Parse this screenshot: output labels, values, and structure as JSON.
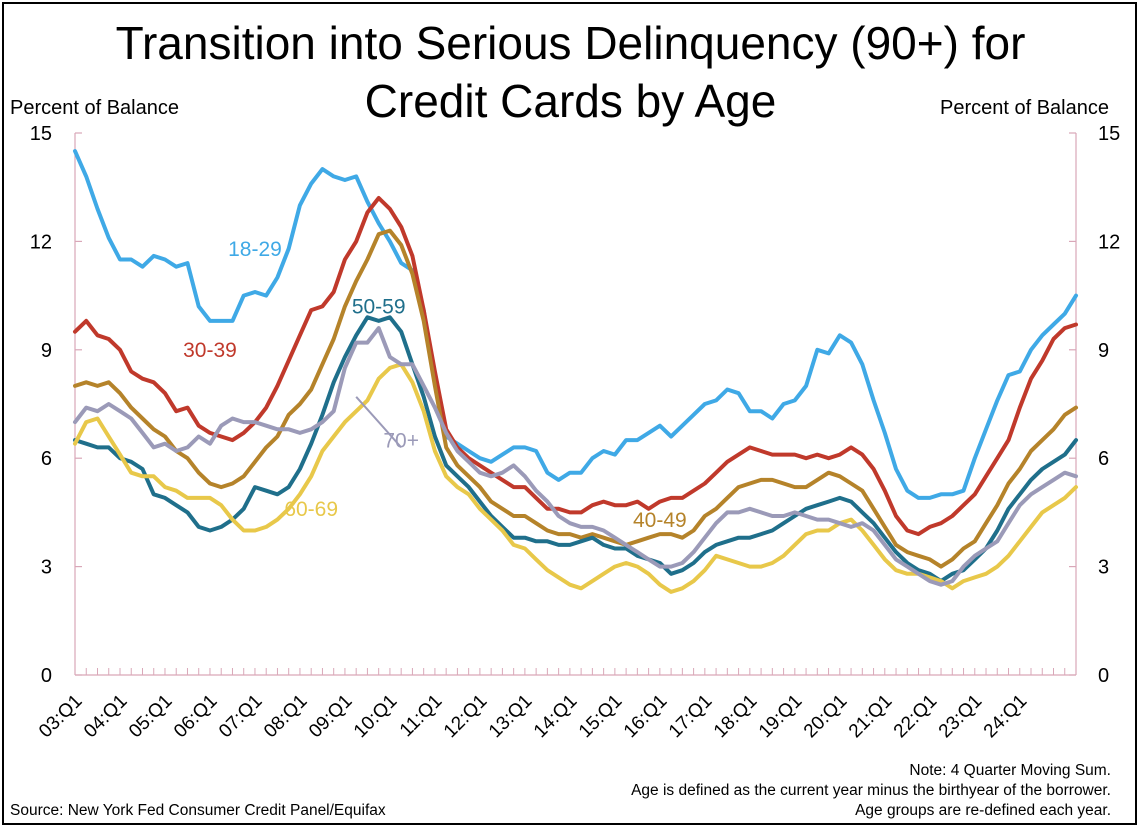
{
  "chart_data": {
    "type": "line",
    "title": "Transition into Serious Delinquency (90+) for Credit Cards by Age",
    "title_lines": [
      "Transition into Serious Delinquency (90+) for",
      "Credit Cards by Age"
    ],
    "ylabel_left": "Percent of Balance",
    "ylabel_right": "Percent of Balance",
    "ylim": [
      0,
      15
    ],
    "yticks": [
      0,
      3,
      6,
      9,
      12,
      15
    ],
    "x_start": "03:Q1",
    "x_ticks": [
      "03:Q1",
      "04:Q1",
      "05:Q1",
      "06:Q1",
      "07:Q1",
      "08:Q1",
      "09:Q1",
      "10:Q1",
      "11:Q1",
      "12:Q1",
      "13:Q1",
      "14:Q1",
      "15:Q1",
      "16:Q1",
      "17:Q1",
      "18:Q1",
      "19:Q1",
      "20:Q1",
      "21:Q1",
      "22:Q1",
      "23:Q1",
      "24:Q1"
    ],
    "x_last": "24:Q3",
    "grid": false,
    "series": [
      {
        "name": "18-29",
        "color": "#3fa9e6",
        "label_x": "07:Q1",
        "label_y": 11.6,
        "values": [
          14.5,
          13.8,
          12.9,
          12.1,
          11.5,
          11.5,
          11.3,
          11.6,
          11.5,
          11.3,
          11.4,
          10.2,
          9.8,
          9.8,
          9.8,
          10.5,
          10.6,
          10.5,
          11.0,
          11.8,
          13.0,
          13.6,
          14.0,
          13.8,
          13.7,
          13.8,
          13.1,
          12.5,
          12.0,
          11.4,
          11.2,
          10.1,
          8.1,
          6.6,
          6.4,
          6.2,
          6.0,
          5.9,
          6.1,
          6.3,
          6.3,
          6.2,
          5.6,
          5.4,
          5.6,
          5.6,
          6.0,
          6.2,
          6.1,
          6.5,
          6.5,
          6.7,
          6.9,
          6.6,
          6.9,
          7.2,
          7.5,
          7.6,
          7.9,
          7.8,
          7.3,
          7.3,
          7.1,
          7.5,
          7.6,
          8.0,
          9.0,
          8.9,
          9.4,
          9.2,
          8.6,
          7.6,
          6.7,
          5.7,
          5.1,
          4.9,
          4.9,
          5.0,
          5.0,
          5.1,
          6.0,
          6.8,
          7.6,
          8.3,
          8.4,
          9.0,
          9.4,
          9.7,
          10.0,
          10.5
        ]
      },
      {
        "name": "30-39",
        "color": "#c0392b",
        "label_x": "06:Q1",
        "label_y": 8.8,
        "values": [
          9.5,
          9.8,
          9.4,
          9.3,
          9.0,
          8.4,
          8.2,
          8.1,
          7.8,
          7.3,
          7.4,
          6.9,
          6.7,
          6.6,
          6.5,
          6.7,
          7.0,
          7.4,
          8.0,
          8.7,
          9.4,
          10.1,
          10.2,
          10.6,
          11.5,
          12.0,
          12.8,
          13.2,
          12.9,
          12.4,
          11.6,
          10.1,
          8.4,
          6.8,
          6.3,
          6.0,
          5.8,
          5.6,
          5.4,
          5.2,
          5.2,
          4.9,
          4.6,
          4.6,
          4.5,
          4.5,
          4.7,
          4.8,
          4.7,
          4.7,
          4.8,
          4.6,
          4.8,
          4.9,
          4.9,
          5.1,
          5.3,
          5.6,
          5.9,
          6.1,
          6.3,
          6.2,
          6.1,
          6.1,
          6.1,
          6.0,
          6.1,
          6.0,
          6.1,
          6.3,
          6.1,
          5.7,
          5.1,
          4.4,
          4.0,
          3.9,
          4.1,
          4.2,
          4.4,
          4.7,
          5.0,
          5.5,
          6.0,
          6.5,
          7.4,
          8.2,
          8.7,
          9.3,
          9.6,
          9.7
        ]
      },
      {
        "name": "40-49",
        "color": "#b5832a",
        "label_x": "16:Q1",
        "label_y": 4.1,
        "values": [
          8.0,
          8.1,
          8.0,
          8.1,
          7.8,
          7.4,
          7.1,
          6.8,
          6.6,
          6.2,
          6.0,
          5.6,
          5.3,
          5.2,
          5.3,
          5.5,
          5.9,
          6.3,
          6.6,
          7.2,
          7.5,
          7.9,
          8.6,
          9.3,
          10.2,
          10.9,
          11.5,
          12.2,
          12.3,
          11.9,
          11.1,
          9.8,
          8.0,
          6.3,
          5.8,
          5.5,
          5.2,
          4.8,
          4.6,
          4.4,
          4.4,
          4.2,
          4.0,
          3.9,
          3.9,
          3.8,
          3.9,
          3.8,
          3.7,
          3.6,
          3.7,
          3.8,
          3.9,
          3.9,
          3.8,
          4.0,
          4.4,
          4.6,
          4.9,
          5.2,
          5.3,
          5.4,
          5.4,
          5.3,
          5.2,
          5.2,
          5.4,
          5.6,
          5.5,
          5.3,
          5.1,
          4.6,
          4.1,
          3.6,
          3.4,
          3.3,
          3.2,
          3.0,
          3.2,
          3.5,
          3.7,
          4.2,
          4.7,
          5.3,
          5.7,
          6.2,
          6.5,
          6.8,
          7.2,
          7.4
        ]
      },
      {
        "name": "50-59",
        "color": "#1f6f8b",
        "label_x": "09:Q4",
        "label_y": 10.0,
        "values": [
          6.5,
          6.4,
          6.3,
          6.3,
          6.0,
          5.9,
          5.7,
          5.0,
          4.9,
          4.7,
          4.5,
          4.1,
          4.0,
          4.1,
          4.3,
          4.6,
          5.2,
          5.1,
          5.0,
          5.2,
          5.7,
          6.4,
          7.2,
          8.1,
          8.8,
          9.4,
          9.9,
          9.8,
          9.9,
          9.5,
          8.6,
          7.7,
          6.6,
          5.8,
          5.5,
          5.2,
          4.8,
          4.4,
          4.1,
          3.8,
          3.8,
          3.7,
          3.7,
          3.6,
          3.6,
          3.7,
          3.8,
          3.6,
          3.5,
          3.5,
          3.3,
          3.2,
          3.1,
          2.8,
          2.9,
          3.1,
          3.4,
          3.6,
          3.7,
          3.8,
          3.8,
          3.9,
          4.0,
          4.2,
          4.4,
          4.6,
          4.7,
          4.8,
          4.9,
          4.8,
          4.5,
          4.2,
          3.8,
          3.4,
          3.1,
          2.9,
          2.8,
          2.6,
          2.8,
          2.9,
          3.2,
          3.5,
          4.0,
          4.6,
          5.0,
          5.4,
          5.7,
          5.9,
          6.1,
          6.5
        ]
      },
      {
        "name": "60-69",
        "color": "#e8c84a",
        "label_x": "08:Q2",
        "label_y": 4.4,
        "values": [
          6.4,
          7.0,
          7.1,
          6.6,
          6.1,
          5.6,
          5.5,
          5.5,
          5.2,
          5.1,
          4.9,
          4.9,
          4.9,
          4.7,
          4.3,
          4.0,
          4.0,
          4.1,
          4.3,
          4.6,
          5.0,
          5.5,
          6.2,
          6.6,
          7.0,
          7.3,
          7.6,
          8.2,
          8.5,
          8.6,
          8.1,
          7.3,
          6.2,
          5.5,
          5.2,
          5.0,
          4.6,
          4.3,
          4.0,
          3.6,
          3.5,
          3.2,
          2.9,
          2.7,
          2.5,
          2.4,
          2.6,
          2.8,
          3.0,
          3.1,
          3.0,
          2.8,
          2.5,
          2.3,
          2.4,
          2.6,
          2.9,
          3.3,
          3.2,
          3.1,
          3.0,
          3.0,
          3.1,
          3.3,
          3.6,
          3.9,
          4.0,
          4.0,
          4.2,
          4.3,
          4.0,
          3.6,
          3.2,
          2.9,
          2.8,
          2.8,
          2.7,
          2.6,
          2.4,
          2.6,
          2.7,
          2.8,
          3.0,
          3.3,
          3.7,
          4.1,
          4.5,
          4.7,
          4.9,
          5.2
        ]
      },
      {
        "name": "70+",
        "color": "#9b9ab8",
        "label_x": "10:Q2",
        "label_y": 6.3,
        "values": [
          7.0,
          7.4,
          7.3,
          7.5,
          7.3,
          7.1,
          6.7,
          6.3,
          6.4,
          6.2,
          6.3,
          6.6,
          6.4,
          6.9,
          7.1,
          7.0,
          7.0,
          6.9,
          6.8,
          6.8,
          6.7,
          6.8,
          7.0,
          7.3,
          8.5,
          9.2,
          9.2,
          9.6,
          8.8,
          8.6,
          8.6,
          8.0,
          7.4,
          6.7,
          6.2,
          5.9,
          5.6,
          5.5,
          5.6,
          5.8,
          5.5,
          5.1,
          4.8,
          4.4,
          4.2,
          4.1,
          4.1,
          4.0,
          3.8,
          3.6,
          3.4,
          3.2,
          3.0,
          3.0,
          3.1,
          3.4,
          3.8,
          4.2,
          4.5,
          4.5,
          4.6,
          4.5,
          4.4,
          4.4,
          4.5,
          4.4,
          4.3,
          4.3,
          4.2,
          4.1,
          4.2,
          4.0,
          3.6,
          3.2,
          3.0,
          2.8,
          2.6,
          2.5,
          2.6,
          3.0,
          3.3,
          3.5,
          3.7,
          4.2,
          4.7,
          5.0,
          5.2,
          5.4,
          5.6,
          5.5
        ]
      }
    ],
    "annotation_line": {
      "series": "70+",
      "from": [
        "10:Q2",
        6.3
      ],
      "to": [
        "09:Q2",
        7.7
      ]
    }
  },
  "notes": [
    "Note: 4 Quarter Moving Sum.",
    "Age is defined as the current year minus the birthyear of the borrower.",
    "Age groups are re-defined each year."
  ],
  "source": "Source: New York Fed Consumer Credit Panel/Equifax"
}
